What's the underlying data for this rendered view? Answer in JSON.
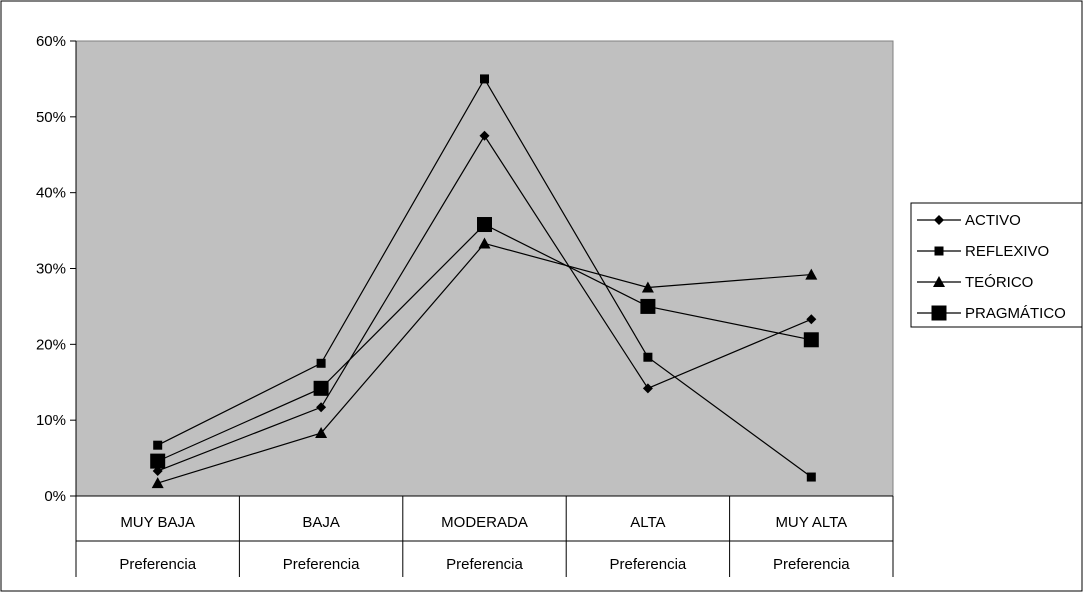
{
  "chart_data": {
    "type": "line",
    "categories": [
      [
        "MUY BAJA",
        "Preferencia"
      ],
      [
        "BAJA",
        "Preferencia"
      ],
      [
        "MODERADA",
        "Preferencia"
      ],
      [
        "ALTA",
        "Preferencia"
      ],
      [
        "MUY ALTA",
        "Preferencia"
      ]
    ],
    "ylim": [
      0,
      60
    ],
    "yticks": [
      0,
      10,
      20,
      30,
      40,
      50,
      60
    ],
    "ytick_labels": [
      "0%",
      "10%",
      "20%",
      "30%",
      "40%",
      "50%",
      "60%"
    ],
    "grid": false,
    "plot_background": "#c0c0c0",
    "legend_position": "right",
    "series": [
      {
        "name": "ACTIVO",
        "marker": "diamond",
        "values": [
          3.3,
          11.7,
          47.5,
          14.2,
          23.3
        ]
      },
      {
        "name": "REFLEXIVO",
        "marker": "square",
        "values": [
          6.7,
          17.5,
          55.0,
          18.3,
          2.5
        ]
      },
      {
        "name": "TEÓRICO",
        "marker": "triangle",
        "values": [
          1.7,
          8.3,
          33.3,
          27.5,
          29.2
        ]
      },
      {
        "name": "PRAGMÁTICO",
        "marker": "square-large",
        "values": [
          4.6,
          14.2,
          35.8,
          25.0,
          20.6
        ]
      }
    ]
  }
}
